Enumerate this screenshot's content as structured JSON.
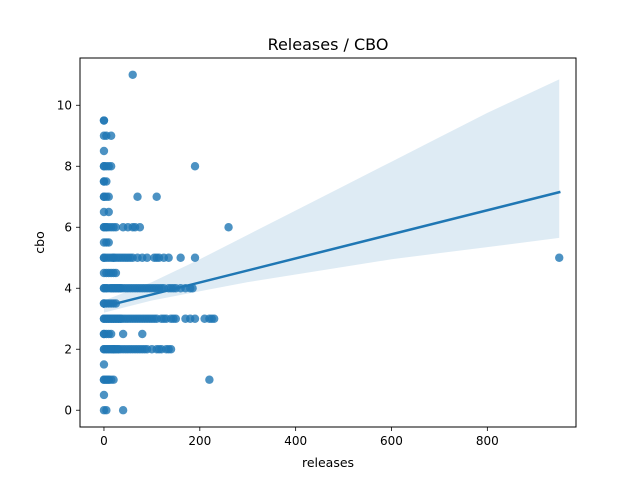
{
  "chart_data": {
    "type": "scatter",
    "title": "Releases / CBO",
    "xlabel": "releases",
    "ylabel": "cbo",
    "xlim": [
      -50,
      985
    ],
    "ylim": [
      -0.55,
      11.55
    ],
    "xticks": [
      0,
      200,
      400,
      600,
      800
    ],
    "yticks": [
      0,
      2,
      4,
      6,
      8,
      10
    ],
    "grid": false,
    "legend": "none",
    "colors": {
      "points": "#1f77b4",
      "regression_line": "#1f77b4",
      "confidence_band": "#1f77b4"
    },
    "points_x": [
      0,
      0,
      0,
      0,
      0,
      0,
      0,
      0,
      0,
      0,
      0,
      0,
      0,
      0,
      0,
      0,
      0,
      0,
      0,
      0,
      0,
      0,
      0,
      0,
      0,
      0,
      0,
      0,
      0,
      0,
      0,
      0,
      5,
      5,
      5,
      5,
      5,
      5,
      5,
      5,
      5,
      5,
      5,
      5,
      5,
      5,
      5,
      5,
      5,
      5,
      5,
      5,
      10,
      10,
      10,
      10,
      10,
      10,
      10,
      10,
      10,
      10,
      10,
      10,
      10,
      10,
      10,
      10,
      15,
      15,
      15,
      15,
      15,
      15,
      15,
      15,
      15,
      15,
      15,
      15,
      15,
      15,
      20,
      20,
      20,
      20,
      20,
      20,
      20,
      20,
      20,
      20,
      20,
      20,
      20,
      25,
      25,
      25,
      25,
      25,
      25,
      25,
      25,
      25,
      25,
      30,
      30,
      30,
      30,
      30,
      30,
      30,
      35,
      35,
      35,
      35,
      35,
      35,
      40,
      40,
      40,
      40,
      40,
      40,
      40,
      45,
      45,
      45,
      45,
      50,
      50,
      50,
      50,
      50,
      55,
      55,
      55,
      55,
      60,
      60,
      60,
      60,
      60,
      60,
      65,
      65,
      65,
      65,
      70,
      70,
      70,
      70,
      70,
      75,
      75,
      75,
      75,
      80,
      80,
      80,
      80,
      80,
      85,
      85,
      85,
      90,
      90,
      90,
      90,
      95,
      95,
      100,
      100,
      100,
      105,
      105,
      105,
      110,
      110,
      110,
      110,
      110,
      115,
      115,
      115,
      120,
      120,
      120,
      125,
      125,
      125,
      130,
      130,
      135,
      135,
      135,
      140,
      140,
      140,
      145,
      145,
      150,
      150,
      160,
      160,
      170,
      170,
      180,
      180,
      185,
      190,
      190,
      190,
      210,
      220,
      220,
      225,
      230,
      260,
      950
    ],
    "points_y": [
      0,
      0.5,
      1,
      1,
      1.5,
      2,
      2,
      2.5,
      2.5,
      3,
      3,
      3.5,
      3.5,
      4,
      4,
      4.5,
      5,
      5,
      5.5,
      6,
      6,
      6.5,
      7,
      7,
      7.5,
      7.5,
      8,
      8,
      8.5,
      9,
      9.5,
      9.5,
      0,
      1,
      2,
      2.5,
      3,
      3,
      3.5,
      4,
      4,
      4.5,
      5,
      5.5,
      6,
      6,
      7,
      7.5,
      8,
      9,
      1,
      2,
      1,
      2,
      2.5,
      3,
      3.5,
      4,
      4.5,
      5,
      5.5,
      6,
      6.5,
      7,
      8,
      1,
      2,
      3,
      1,
      2,
      2.5,
      3,
      3.5,
      4,
      4.5,
      5,
      6,
      8,
      9,
      2,
      3,
      4,
      1,
      2,
      3,
      3.5,
      4,
      4.5,
      5,
      6,
      2,
      3,
      4,
      5,
      2,
      2,
      3,
      3.5,
      4,
      4.5,
      5,
      6,
      2,
      3,
      4,
      2,
      3,
      4,
      5,
      2,
      3,
      4,
      2,
      3,
      4,
      5,
      3,
      4,
      0,
      2,
      2.5,
      3,
      4,
      5,
      6,
      2,
      3,
      4,
      5,
      2,
      3,
      4,
      5,
      6,
      2,
      3,
      4,
      5,
      2,
      3,
      4,
      5,
      6,
      11,
      2,
      3,
      4,
      6,
      2,
      3,
      4,
      5,
      7,
      2,
      3,
      4,
      6,
      2,
      2.5,
      3,
      4,
      5,
      2,
      3,
      4,
      2,
      3,
      4,
      5,
      3,
      4,
      2,
      3,
      4,
      3,
      4,
      5,
      2,
      3,
      4,
      5,
      7,
      2,
      4,
      5,
      2,
      3,
      4,
      3,
      4,
      5,
      2,
      3,
      2,
      4,
      5,
      2,
      3,
      4,
      3,
      4,
      3,
      4,
      4,
      5,
      3,
      4,
      3,
      4,
      4,
      3,
      5,
      8,
      3,
      3,
      1,
      3,
      3,
      6,
      5
    ],
    "regression": {
      "x": [
        0,
        950
      ],
      "y": [
        3.4,
        7.15
      ]
    },
    "confidence_band": {
      "x": [
        0,
        100,
        200,
        300,
        400,
        500,
        600,
        700,
        800,
        950
      ],
      "lower": [
        3.2,
        3.6,
        3.9,
        4.2,
        4.45,
        4.7,
        4.95,
        5.15,
        5.35,
        5.65
      ],
      "upper": [
        3.6,
        4.2,
        4.95,
        5.75,
        6.55,
        7.35,
        8.15,
        8.95,
        9.75,
        10.85
      ]
    }
  }
}
